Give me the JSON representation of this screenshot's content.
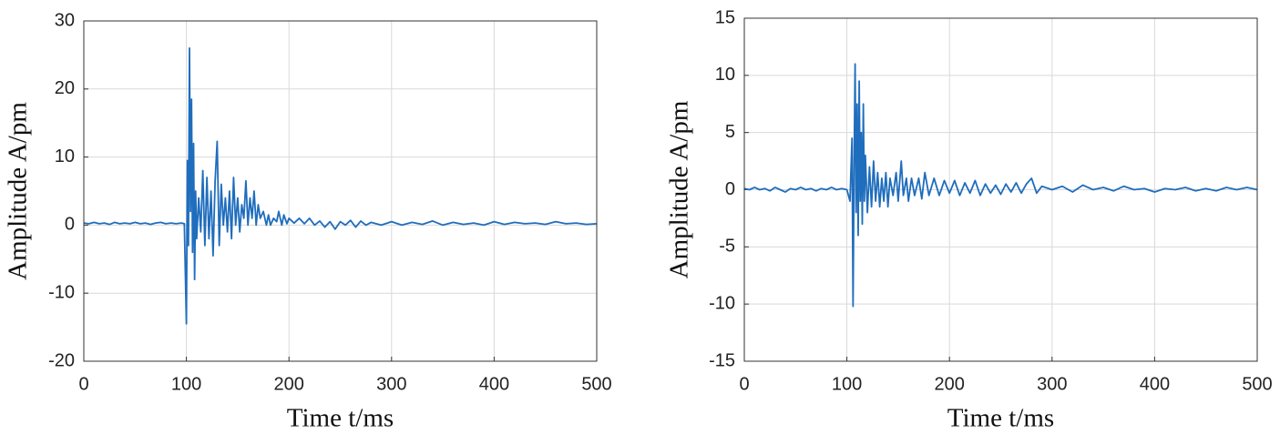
{
  "chart_data": [
    {
      "type": "line",
      "xlabel": "Time t/ms",
      "ylabel": "Amplitude A/pm",
      "color": "#1f6dbd",
      "grid": true,
      "xlim": [
        0,
        500
      ],
      "ylim": [
        -20,
        30
      ],
      "xticks": [
        0,
        100,
        200,
        300,
        400,
        500
      ],
      "yticks": [
        -20,
        -10,
        0,
        10,
        20,
        30
      ],
      "x": [
        0,
        5,
        10,
        15,
        20,
        25,
        30,
        35,
        40,
        45,
        50,
        55,
        60,
        65,
        70,
        75,
        80,
        85,
        90,
        95,
        98,
        100,
        101,
        102,
        103,
        104,
        105,
        106,
        107,
        108,
        109,
        110,
        112,
        114,
        116,
        118,
        120,
        122,
        124,
        126,
        128,
        130,
        132,
        134,
        136,
        138,
        140,
        142,
        144,
        146,
        148,
        150,
        152,
        154,
        156,
        158,
        160,
        162,
        164,
        166,
        168,
        170,
        172,
        175,
        178,
        180,
        182,
        185,
        188,
        190,
        193,
        195,
        198,
        200,
        205,
        210,
        215,
        220,
        225,
        230,
        235,
        240,
        245,
        250,
        255,
        260,
        265,
        270,
        275,
        280,
        290,
        300,
        310,
        320,
        330,
        340,
        350,
        360,
        370,
        380,
        390,
        400,
        410,
        420,
        430,
        440,
        450,
        460,
        470,
        480,
        490,
        500
      ],
      "values": [
        0.3,
        0.2,
        0.4,
        0.2,
        0.3,
        0.1,
        0.4,
        0.2,
        0.3,
        0.2,
        0.4,
        0.2,
        0.3,
        0.1,
        0.3,
        0.4,
        0.2,
        0.3,
        0.2,
        0.3,
        0.2,
        -14.5,
        9.5,
        -3,
        26,
        2,
        18.5,
        -4,
        12,
        -8,
        5,
        -2,
        4,
        -1,
        8,
        -3,
        7,
        -2,
        5,
        -4.5,
        6.5,
        12.3,
        -3,
        6,
        0,
        4,
        -1,
        5,
        -2,
        7,
        0,
        4,
        -1,
        3,
        1,
        6.5,
        0,
        4,
        1,
        5,
        0,
        3,
        1,
        2,
        0,
        1.5,
        0,
        1,
        0.5,
        2,
        0,
        1.5,
        0.2,
        1,
        0.3,
        1,
        0.2,
        1,
        0,
        0.6,
        -0.3,
        0.5,
        -0.6,
        0.5,
        0,
        0.7,
        -0.3,
        0.6,
        0,
        0.4,
        0,
        0.5,
        0,
        0.4,
        0.1,
        0.6,
        0,
        0.4,
        0.1,
        0.3,
        0,
        0.5,
        0.1,
        0.4,
        0.2,
        0.3,
        0.1,
        0.5,
        0.2,
        0.3,
        0.1,
        0.2
      ]
    },
    {
      "type": "line",
      "xlabel": "Time t/ms",
      "ylabel": "Amplitude A/pm",
      "color": "#1f6dbd",
      "grid": true,
      "xlim": [
        0,
        500
      ],
      "ylim": [
        -15,
        15
      ],
      "xticks": [
        0,
        100,
        200,
        300,
        400,
        500
      ],
      "yticks": [
        -15,
        -10,
        -5,
        0,
        5,
        10,
        15
      ],
      "x": [
        0,
        5,
        10,
        15,
        20,
        25,
        30,
        35,
        40,
        45,
        50,
        55,
        60,
        65,
        70,
        75,
        80,
        85,
        90,
        95,
        100,
        103,
        105,
        106,
        107,
        108,
        109,
        110,
        111,
        112,
        113,
        114,
        115,
        116,
        117,
        118,
        120,
        122,
        124,
        126,
        128,
        130,
        132,
        134,
        136,
        138,
        140,
        142,
        145,
        148,
        150,
        153,
        155,
        158,
        160,
        163,
        166,
        170,
        173,
        176,
        180,
        185,
        190,
        195,
        200,
        205,
        210,
        215,
        220,
        225,
        230,
        235,
        240,
        245,
        250,
        255,
        260,
        265,
        270,
        275,
        280,
        285,
        290,
        300,
        310,
        320,
        330,
        340,
        350,
        360,
        370,
        380,
        390,
        400,
        410,
        420,
        430,
        440,
        450,
        460,
        470,
        480,
        490,
        500
      ],
      "values": [
        0.1,
        0,
        0.2,
        0,
        0.1,
        -0.1,
        0.2,
        0,
        -0.2,
        0.1,
        0,
        0.2,
        0,
        0.1,
        -0.1,
        0.1,
        0,
        0.2,
        0,
        0.1,
        0,
        -1,
        4.5,
        -10.2,
        2,
        11,
        -2,
        7.5,
        -4,
        9.5,
        -1,
        5,
        -3,
        7.5,
        -1,
        3,
        -2,
        2,
        -1.5,
        2.5,
        -1,
        1.5,
        -1.5,
        1,
        -1,
        1.5,
        -1.5,
        1,
        -0.5,
        1.5,
        -1,
        2.5,
        -0.5,
        1,
        -1,
        1,
        -0.5,
        1,
        -0.8,
        1.5,
        -0.5,
        1,
        -0.5,
        0.8,
        -0.3,
        0.8,
        -0.5,
        0.6,
        -0.3,
        0.8,
        -0.5,
        0.5,
        -0.3,
        0.4,
        -0.4,
        0.5,
        -0.2,
        0.6,
        -0.3,
        0.5,
        1,
        -0.3,
        0.3,
        0,
        0.3,
        -0.2,
        0.4,
        0,
        0.2,
        -0.1,
        0.3,
        0,
        0.1,
        -0.2,
        0.1,
        0,
        0.2,
        -0.1,
        0.1,
        -0.1,
        0.2,
        0,
        0.2,
        0
      ]
    }
  ]
}
